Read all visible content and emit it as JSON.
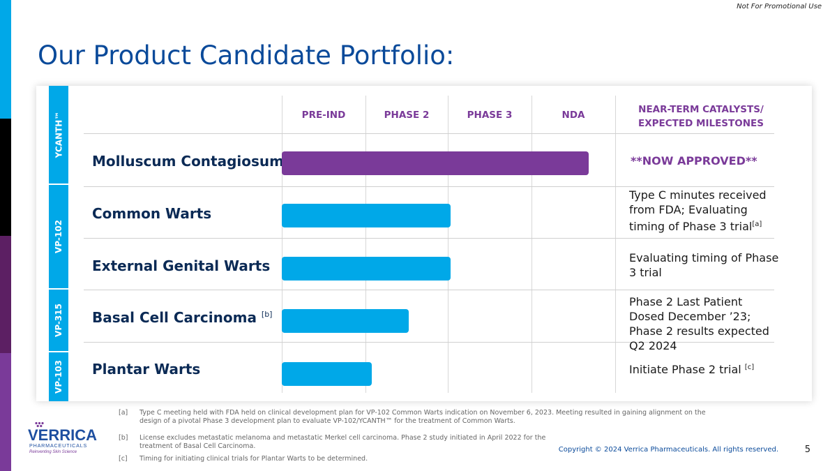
{
  "header": {
    "note": "Not For Promotional Use",
    "title": "Our Product Candidate Portfolio:"
  },
  "side_strips": [
    "#00a8e8",
    "#000000",
    "#5c1f63",
    "#7a3a99"
  ],
  "columns": {
    "pre_ind": "PRE-IND",
    "phase2": "PHASE 2",
    "phase3": "PHASE 3",
    "nda": "NDA",
    "milestones": "NEAR-TERM CATALYSTS/ EXPECTED MILESTONES"
  },
  "products": [
    {
      "code": "YCANTH™",
      "color": "#7a3a99"
    },
    {
      "code": "VP-102",
      "color": "#00a8e8"
    },
    {
      "code": "VP-315",
      "color": "#00a8e8"
    },
    {
      "code": "VP-103",
      "color": "#00a8e8"
    }
  ],
  "rows": [
    {
      "indication": "Molluscum Contagiosum",
      "footnote": "",
      "progress_columns": 3.7,
      "bar_color": "#7a3a99",
      "milestone": "**NOW APPROVED**",
      "milestone_note": ""
    },
    {
      "indication": "Common Warts",
      "footnote": "",
      "progress_columns": 2.03,
      "bar_color": "#00a8e8",
      "milestone": "Type C minutes received from FDA; Evaluating timing of Phase 3 trial",
      "milestone_note": "[a]"
    },
    {
      "indication": "External Genital Warts",
      "footnote": "",
      "progress_columns": 2.03,
      "bar_color": "#00a8e8",
      "milestone": "Evaluating timing of Phase 3 trial",
      "milestone_note": ""
    },
    {
      "indication": "Basal Cell Carcinoma",
      "footnote": "[b]",
      "progress_columns": 1.53,
      "bar_color": "#00a8e8",
      "milestone": "Phase 2 Last Patient Dosed December ’23; Phase 2 results expected Q2 2024",
      "milestone_note": ""
    },
    {
      "indication": "Plantar Warts",
      "footnote": "",
      "progress_columns": 1.08,
      "bar_color": "#00a8e8",
      "milestone": "Initiate Phase 2 trial",
      "milestone_note": "[c]"
    }
  ],
  "footnotes": [
    {
      "tag": "[a]",
      "text": "Type C meeting held with FDA held on clinical development plan for VP-102 Common Warts indication on November 6, 2023.  Meeting resulted in gaining alignment on the design of a pivotal Phase 3 development plan to evaluate  VP-102/YCANTH™ for the treatment of Common Warts."
    },
    {
      "tag": "[b]",
      "text": "License excludes metastatic melanoma and metastatic Merkel cell carcinoma. Phase 2 study initiated in April 2022 for the treatment of Basal Cell Carcinoma."
    },
    {
      "tag": "[c]",
      "text": "Timing for initiating clinical trials for Plantar Warts to be determined."
    }
  ],
  "logo": {
    "name": "VERRICA",
    "sub": "PHARMACEUTICALS",
    "tagline": "Reinventing Skin Science",
    "color": "#1e4fa0",
    "accent": "#7a3a99"
  },
  "footer": {
    "copyright": "Copyright © 2024 Verrica Pharmaceuticals. All rights reserved.",
    "page": "5"
  }
}
